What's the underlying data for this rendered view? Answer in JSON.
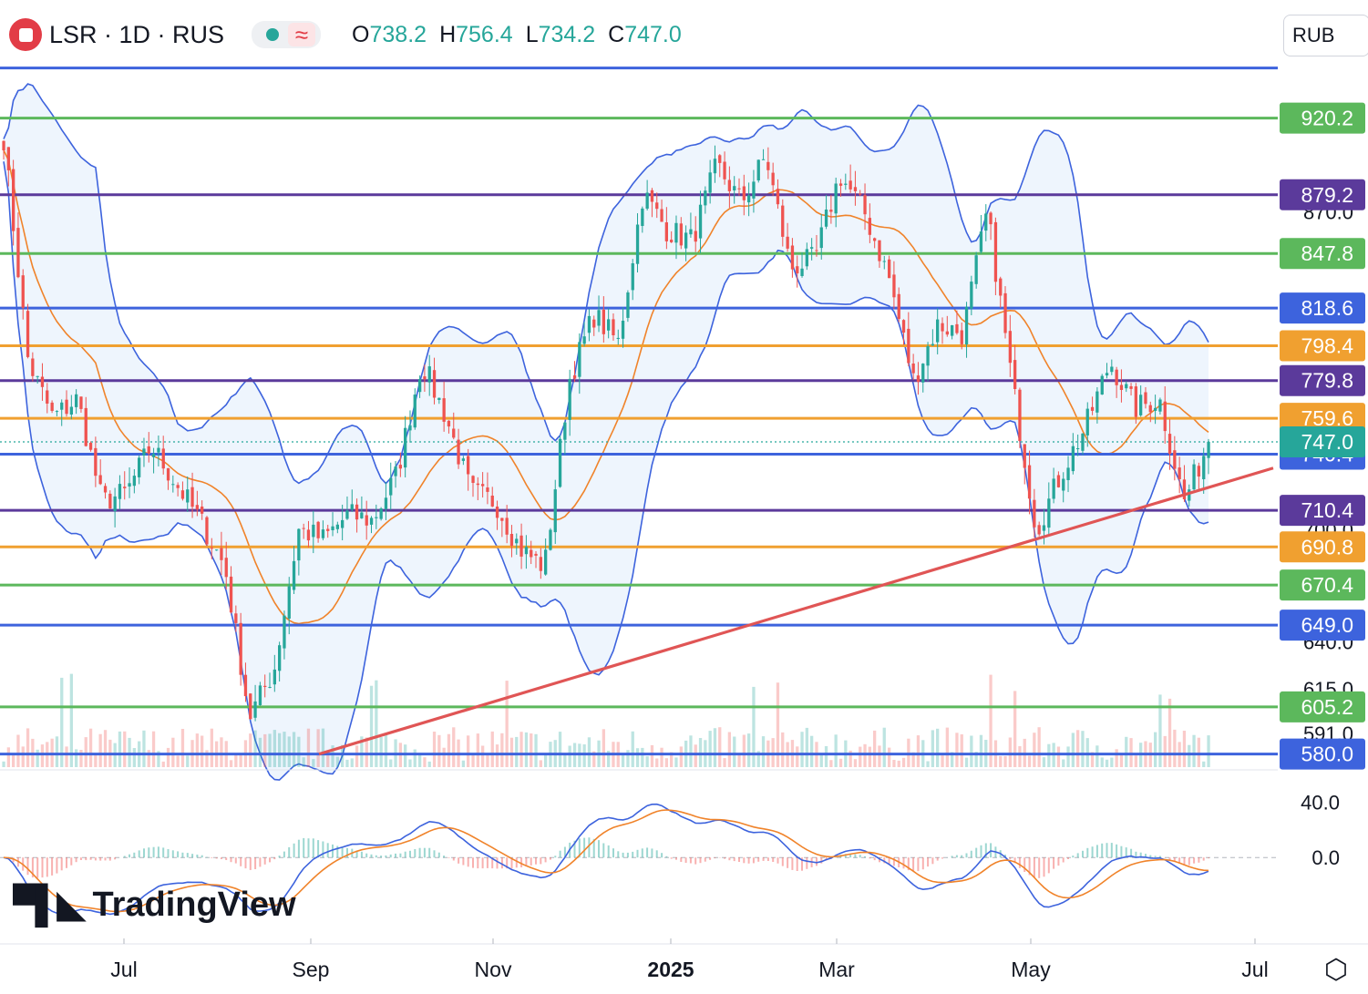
{
  "header": {
    "symbol": "LSR · 1D · RUS",
    "market_status": "market-open-dot",
    "indicator_icon": "≈",
    "open_label": "O",
    "open": "738.2",
    "high_label": "H",
    "high": "756.4",
    "low_label": "L",
    "low": "734.2",
    "close_label": "C",
    "close": "747.0"
  },
  "currency": "RUB",
  "branding": "TradingView",
  "colors": {
    "up": "#26a69a",
    "down": "#ef5350",
    "green_level": "#5cb85c",
    "purple_level": "#5b3a9b",
    "blue_level": "#3d63dd",
    "orange_level": "#f0a030",
    "trendline": "#e05555",
    "bollinger": "#3d63dd",
    "ma": "#f0832a"
  },
  "chart_data": [
    {
      "type": "candlestick",
      "symbol": "LSR",
      "interval": "1D",
      "currency": "RUB",
      "last_price": 747.0,
      "ohlc_last": {
        "open": 738.2,
        "high": 756.4,
        "low": 734.2,
        "close": 747.0
      },
      "y_range": [
        573,
        960
      ],
      "x_tick_labels": [
        "Jul",
        "Sep",
        "Nov",
        "2025",
        "Mar",
        "May",
        "Jul"
      ],
      "y_tick_labels": [
        {
          "value": 870,
          "text": "870.0"
        },
        {
          "value": 700,
          "text": "700.0"
        },
        {
          "value": 640,
          "text": "640.0"
        },
        {
          "value": 615,
          "text": "615.0"
        },
        {
          "value": 591,
          "text": "591.0"
        }
      ],
      "price_levels": [
        {
          "value": 920.2,
          "label": "920.2",
          "color": "green"
        },
        {
          "value": 879.2,
          "label": "879.2",
          "color": "purple"
        },
        {
          "value": 847.8,
          "label": "847.8",
          "color": "green"
        },
        {
          "value": 818.6,
          "label": "818.6",
          "color": "blue"
        },
        {
          "value": 798.4,
          "label": "798.4",
          "color": "orange"
        },
        {
          "value": 779.8,
          "label": "779.8",
          "color": "purple"
        },
        {
          "value": 759.6,
          "label": "759.6",
          "color": "orange"
        },
        {
          "value": 740.4,
          "label": "740.4",
          "color": "blue"
        },
        {
          "value": 710.4,
          "label": "710.4",
          "color": "purple"
        },
        {
          "value": 690.8,
          "label": "690.8",
          "color": "orange"
        },
        {
          "value": 670.4,
          "label": "670.4",
          "color": "green"
        },
        {
          "value": 649.0,
          "label": "649.0",
          "color": "blue"
        },
        {
          "value": 605.2,
          "label": "605.2",
          "color": "green"
        },
        {
          "value": 580.0,
          "label": "580.0",
          "color": "blue"
        },
        {
          "value": 947.0,
          "label": "",
          "color": "blue"
        }
      ],
      "current_price_label": "747.0",
      "trendline": {
        "from": {
          "date": "Sep 2024",
          "value": 580
        },
        "to": {
          "date": "Jul 2025",
          "value": 733
        }
      },
      "price_path": [
        {
          "date": "Jun 2024",
          "value": 910
        },
        {
          "date": "Jun 2024",
          "value": 790
        },
        {
          "date": "Jun 2024",
          "value": 760
        },
        {
          "date": "Jul 2024",
          "value": 770
        },
        {
          "date": "Jul 2024",
          "value": 715
        },
        {
          "date": "Jul 2024",
          "value": 720
        },
        {
          "date": "Aug 2024",
          "value": 745
        },
        {
          "date": "Aug 2024",
          "value": 725
        },
        {
          "date": "Aug 2024",
          "value": 705
        },
        {
          "date": "Aug 2024",
          "value": 680
        },
        {
          "date": "Sep 2024",
          "value": 600
        },
        {
          "date": "Sep 2024",
          "value": 625
        },
        {
          "date": "Sep 2024",
          "value": 700
        },
        {
          "date": "Oct 2024",
          "value": 695
        },
        {
          "date": "Oct 2024",
          "value": 708
        },
        {
          "date": "Oct 2024",
          "value": 705
        },
        {
          "date": "Nov 2024",
          "value": 730
        },
        {
          "date": "Nov 2024",
          "value": 790
        },
        {
          "date": "Nov 2024",
          "value": 760
        },
        {
          "date": "Nov 2024",
          "value": 720
        },
        {
          "date": "Dec 2024",
          "value": 715
        },
        {
          "date": "Dec 2024",
          "value": 690
        },
        {
          "date": "Dec 2024",
          "value": 680
        },
        {
          "date": "Dec 2024",
          "value": 780
        },
        {
          "date": "Jan 2025",
          "value": 815
        },
        {
          "date": "Jan 2025",
          "value": 800
        },
        {
          "date": "Jan 2025",
          "value": 880
        },
        {
          "date": "Jan 2025",
          "value": 860
        },
        {
          "date": "Feb 2025",
          "value": 855
        },
        {
          "date": "Feb 2025",
          "value": 895
        },
        {
          "date": "Feb 2025",
          "value": 875
        },
        {
          "date": "Feb 2025",
          "value": 900
        },
        {
          "date": "Mar 2025",
          "value": 840
        },
        {
          "date": "Mar 2025",
          "value": 845
        },
        {
          "date": "Mar 2025",
          "value": 890
        },
        {
          "date": "Mar 2025",
          "value": 870
        },
        {
          "date": "Apr 2025",
          "value": 835
        },
        {
          "date": "Apr 2025",
          "value": 780
        },
        {
          "date": "Apr 2025",
          "value": 810
        },
        {
          "date": "Apr 2025",
          "value": 805
        },
        {
          "date": "Apr 2025",
          "value": 870
        },
        {
          "date": "May 2025",
          "value": 780
        },
        {
          "date": "May 2025",
          "value": 700
        },
        {
          "date": "May 2025",
          "value": 730
        },
        {
          "date": "May 2025",
          "value": 755
        },
        {
          "date": "Jun 2025",
          "value": 790
        },
        {
          "date": "Jun 2025",
          "value": 765
        },
        {
          "date": "Jun 2025",
          "value": 770
        },
        {
          "date": "Jun 2025",
          "value": 715
        },
        {
          "date": "Jun 2025",
          "value": 747
        }
      ]
    },
    {
      "type": "line",
      "title": "",
      "y_range": [
        -60,
        55
      ],
      "y_tick_labels": [
        {
          "value": 40,
          "text": "40.0"
        },
        {
          "value": 0,
          "text": "0.0"
        }
      ],
      "zero_line": true
    }
  ]
}
